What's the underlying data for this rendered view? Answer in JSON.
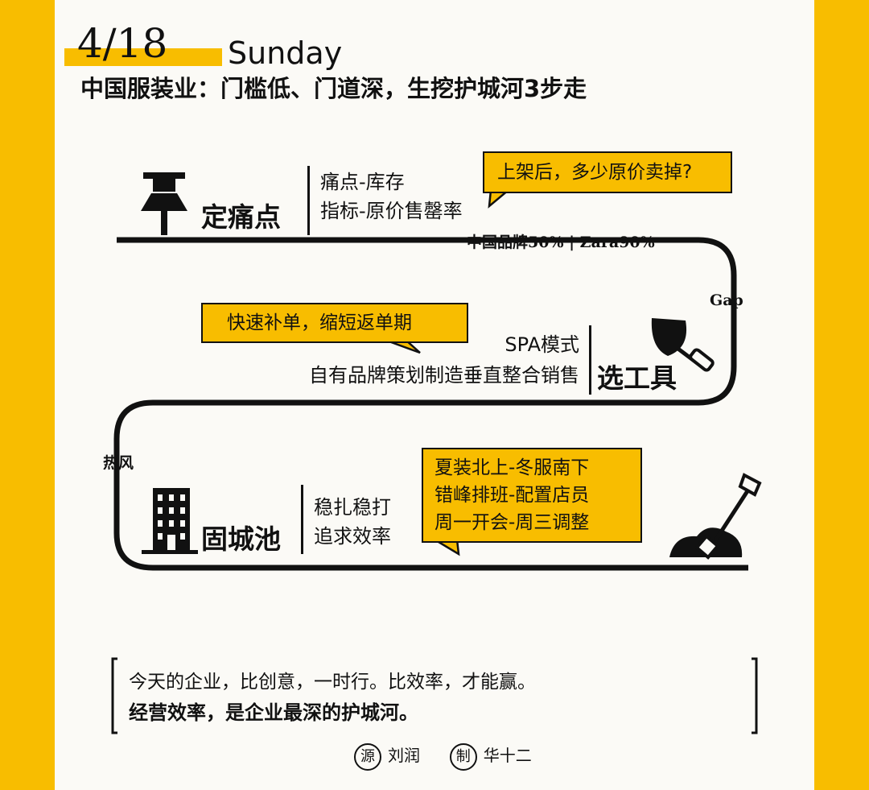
{
  "header": {
    "date": "4/18",
    "weekday": "Sunday",
    "headline": "中国服装业：门槛低、门道深，生挖护城河3步走"
  },
  "steps": [
    {
      "title": "定痛点",
      "icon": "pushpin-icon",
      "lines": [
        "痛点-库存",
        "指标-原价售罄率"
      ],
      "callout": "上架后，多少原价卖掉?",
      "stat": "中国品牌50% | Zara90%"
    },
    {
      "title": "选工具",
      "icon": "trowel-icon",
      "lines": [
        "SPA模式",
        "自有品牌策划制造垂直整合销售"
      ],
      "callout": "快速补单，缩短返单期"
    },
    {
      "title": "固城池",
      "icon": "building-icon",
      "lines": [
        "稳扎稳打",
        "追求效率"
      ],
      "callout_lines": [
        "夏装北上-冬服南下",
        "错峰排班-配置店员",
        "周一开会-周三调整"
      ]
    }
  ],
  "road_labels": {
    "gap": "Gap",
    "hotwind": "热风"
  },
  "end_icon": "shovel-dirt-icon",
  "quote": {
    "line1": "今天的企业，比创意，一时行。比效率，才能赢。",
    "line2": "经营效率，是企业最深的护城河。"
  },
  "credits": {
    "source_badge": "源",
    "source_name": "刘润",
    "maker_badge": "制",
    "maker_name": "华十二"
  },
  "colors": {
    "accent": "#f8bd00",
    "card": "#fbfaf6",
    "ink": "#111111"
  }
}
